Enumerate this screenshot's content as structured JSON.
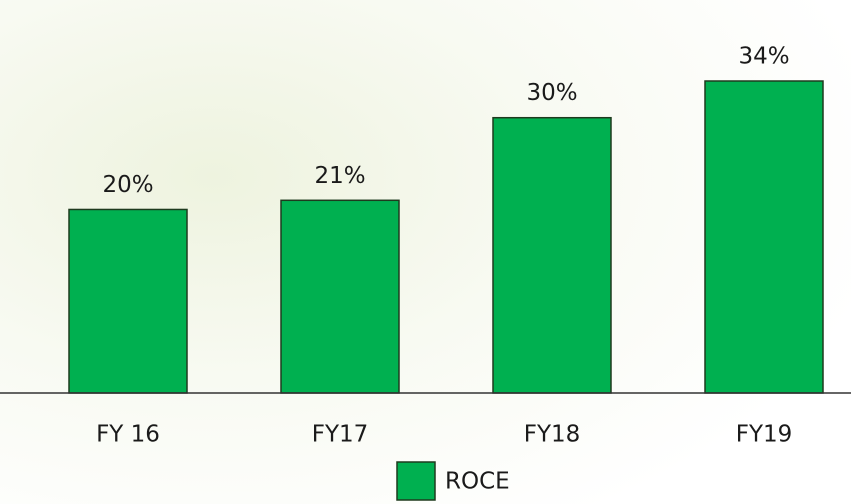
{
  "chart_data": {
    "type": "bar",
    "categories": [
      "FY 16",
      "FY17",
      "FY18",
      "FY19"
    ],
    "series": [
      {
        "name": "ROCE",
        "color": "#00b050",
        "values": [
          20,
          21,
          30,
          34
        ],
        "value_labels": [
          "20%",
          "21%",
          "30%",
          "34%"
        ]
      }
    ],
    "legend": "bottom"
  }
}
